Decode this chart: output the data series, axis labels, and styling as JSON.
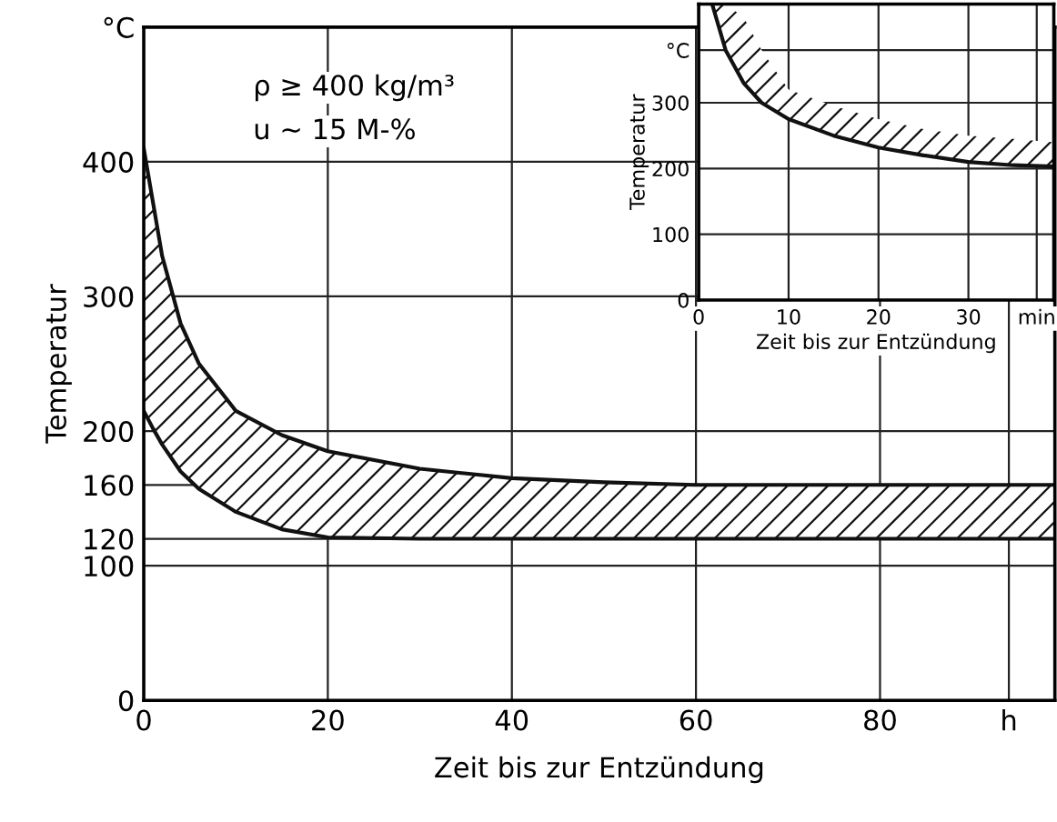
{
  "chart_data": [
    {
      "type": "line",
      "xlabel": "Zeit bis zur Entzündung",
      "ylabel": "Temperatur",
      "annotations": [
        "ρ ≥ 400 kg/m³",
        "u ~ 15 M-%"
      ],
      "xlim": [
        0,
        99
      ],
      "xticks": [
        0,
        20,
        40,
        60,
        80,
        {
          "value": 94,
          "label": "h"
        }
      ],
      "ylim": [
        0,
        500
      ],
      "yticks": [
        0,
        100,
        120,
        160,
        200,
        300,
        400,
        {
          "value": 500,
          "label": "°C"
        }
      ],
      "grid": true,
      "series": [
        {
          "color": "#111111",
          "x": [
            0,
            1,
            2,
            4,
            6,
            10,
            15,
            20,
            30,
            40,
            50,
            60,
            80,
            99
          ],
          "values": [
            410,
            370,
            330,
            280,
            250,
            215,
            197,
            185,
            172,
            165,
            162,
            160,
            160,
            160
          ],
          "lower": [
            215,
            202,
            190,
            170,
            157,
            140,
            127,
            121,
            120,
            120,
            120,
            120,
            120,
            120
          ],
          "upper": [
            410,
            370,
            330,
            280,
            250,
            215,
            197,
            185,
            172,
            165,
            162,
            160,
            160,
            160
          ]
        },
        {
          "color": "#111111",
          "x": [
            0,
            1,
            2,
            4,
            6,
            10,
            15,
            20,
            30,
            40,
            50,
            60,
            80,
            99
          ],
          "values": [
            215,
            202,
            190,
            170,
            157,
            140,
            127,
            121,
            120,
            120,
            120,
            120,
            120,
            120
          ]
        }
      ]
    },
    {
      "type": "line",
      "xlabel": "Zeit bis zur Entzündung",
      "ylabel": "Temperatur",
      "xlim": [
        0,
        39.5
      ],
      "xticks": [
        0,
        10,
        20,
        30,
        {
          "value": 37.6,
          "label": "min"
        }
      ],
      "ylim": [
        0,
        450
      ],
      "yticks": [
        0,
        100,
        200,
        300,
        {
          "value": 380,
          "label": "°C"
        }
      ],
      "grid": true,
      "series": [
        {
          "color": "#111111",
          "x": [
            1.5,
            3,
            5,
            7,
            10,
            15,
            20,
            25,
            30,
            35,
            39.5
          ],
          "values": [
            450,
            380,
            330,
            300,
            275,
            250,
            232,
            220,
            210,
            205,
            203
          ],
          "lower": [
            450,
            380,
            330,
            300,
            275,
            250,
            232,
            220,
            210,
            205,
            203
          ],
          "upper": [
            450,
            450,
            430,
            380,
            320,
            295,
            275,
            260,
            250,
            245,
            240
          ]
        }
      ]
    }
  ]
}
